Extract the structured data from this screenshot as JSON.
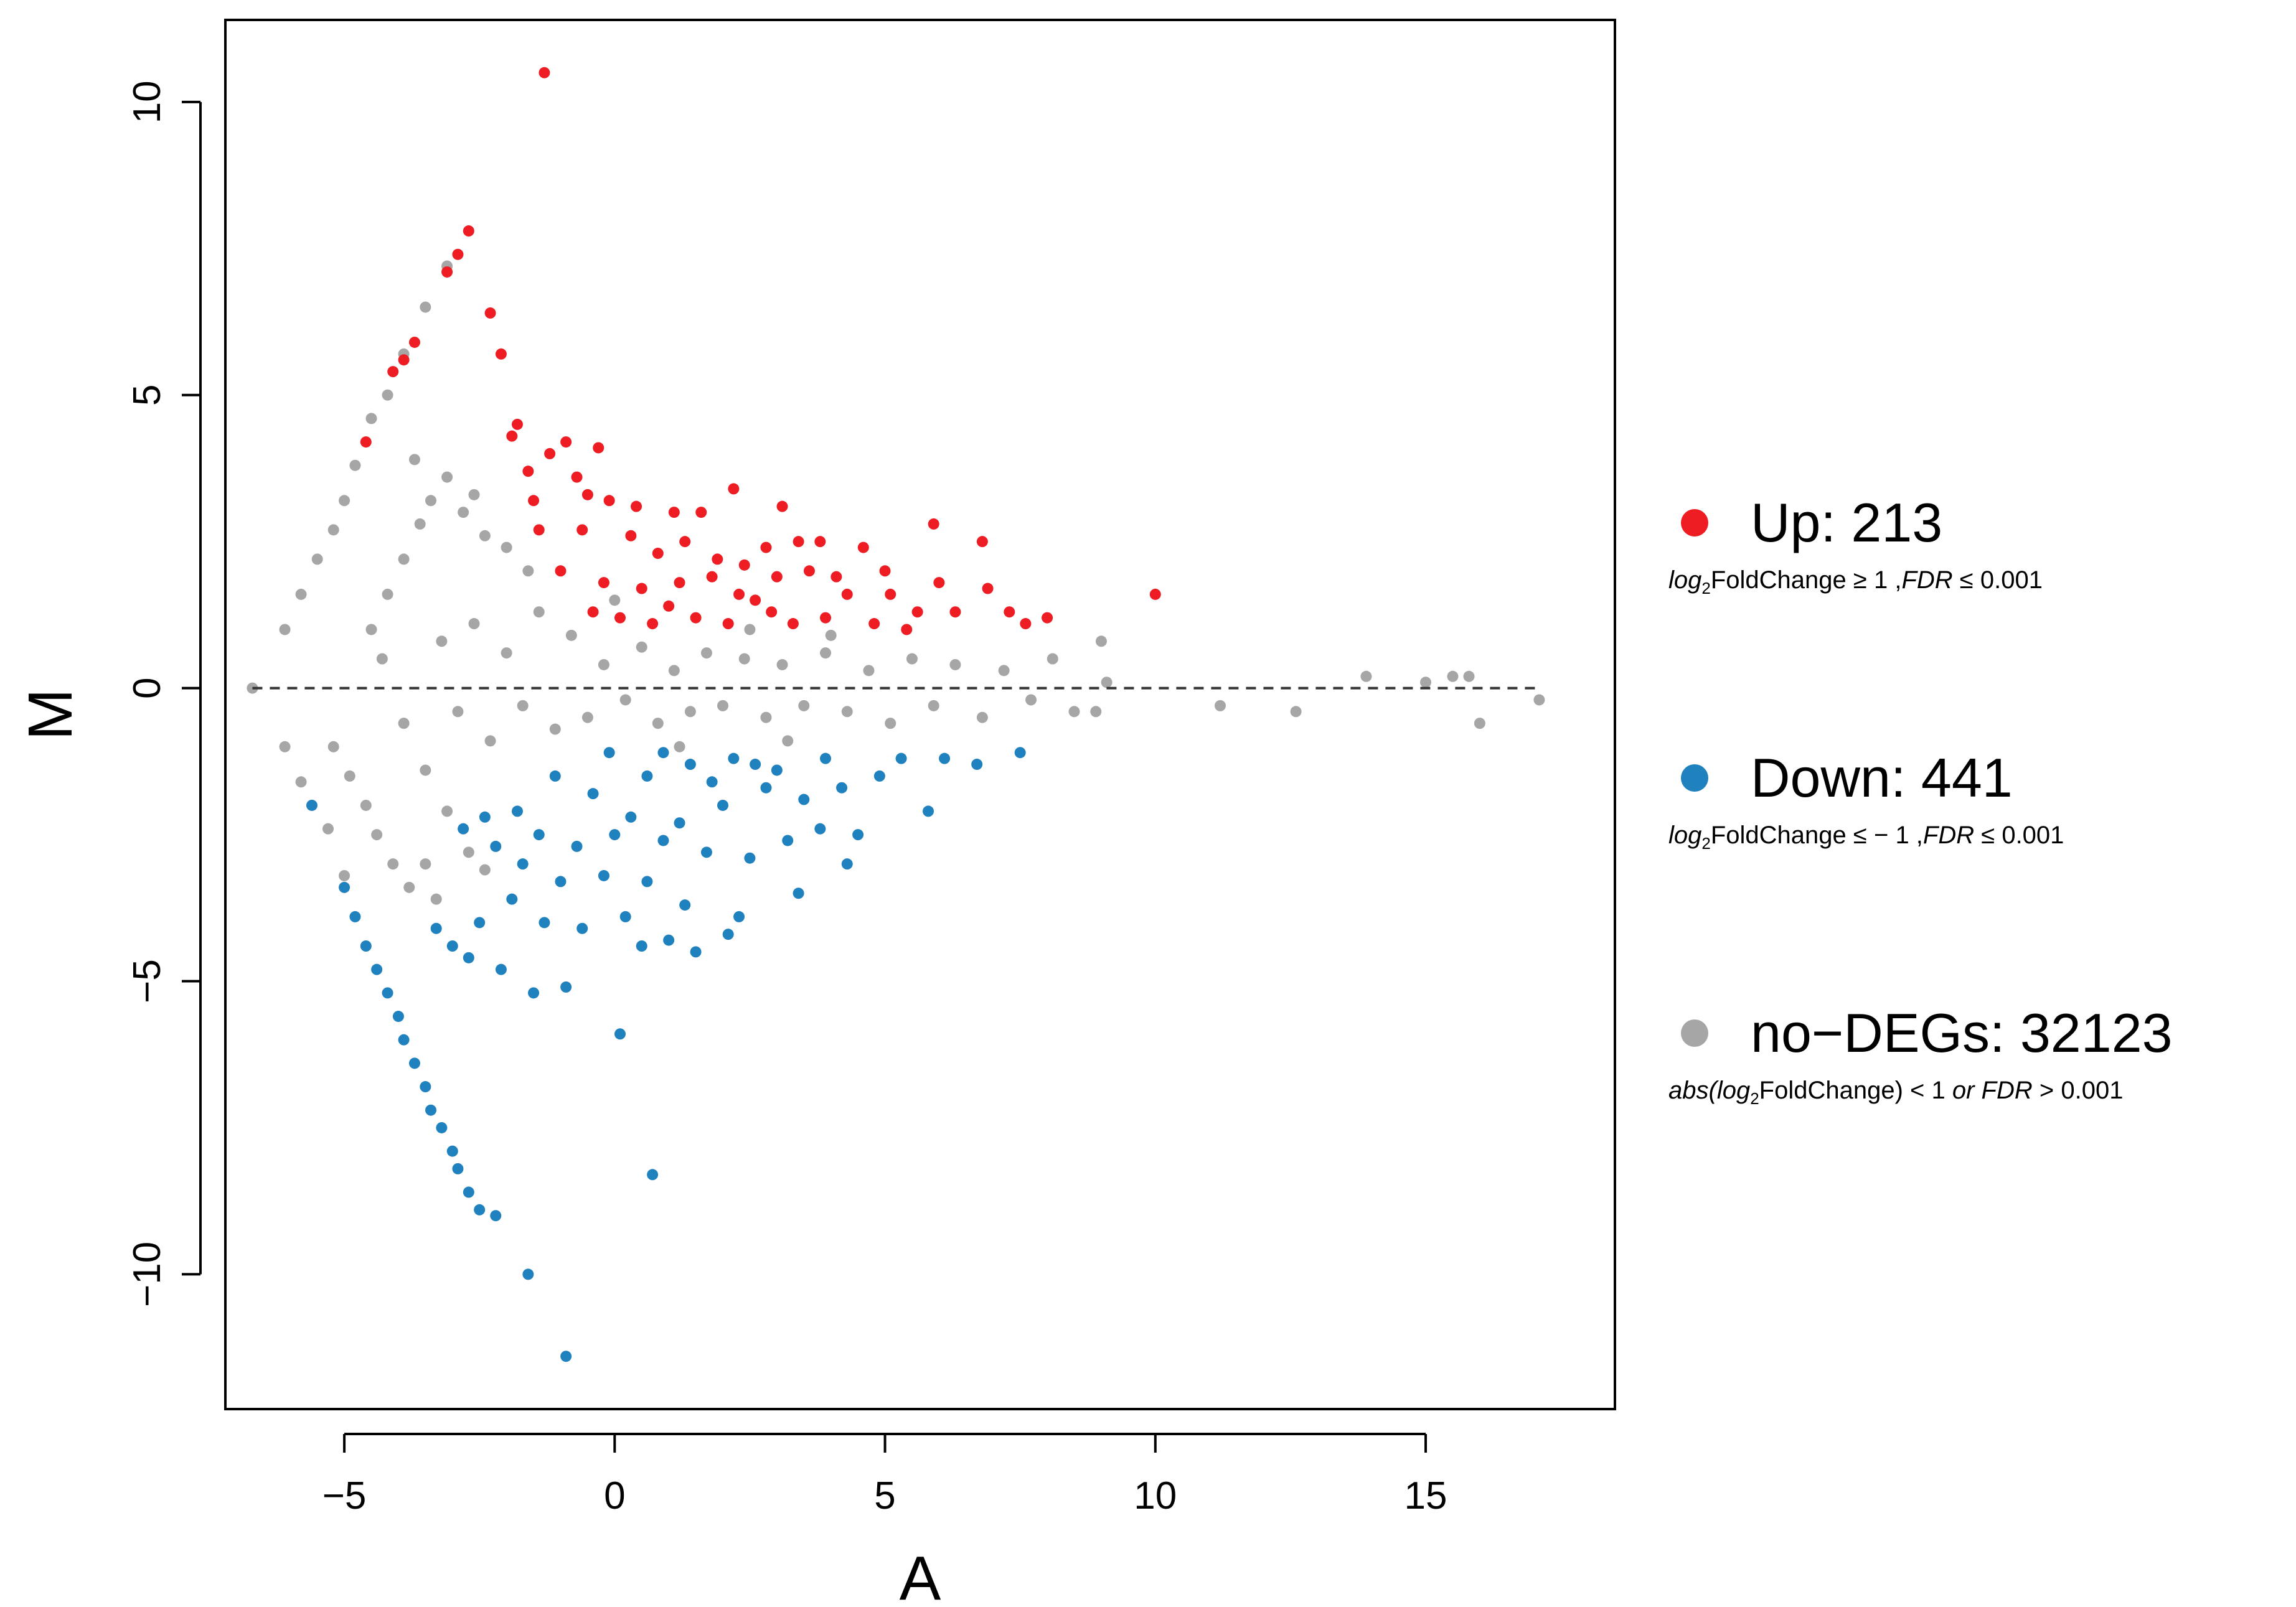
{
  "chart_data": {
    "type": "scatter",
    "title": "",
    "xlabel": "A",
    "ylabel": "M",
    "xlim": [
      -7.2,
      18.5
    ],
    "ylim": [
      -12.3,
      11.4
    ],
    "xticks": [
      -5,
      0,
      5,
      10,
      15
    ],
    "xtick_labels": [
      "−5",
      "0",
      "5",
      "10",
      "15"
    ],
    "yticks": [
      -10,
      -5,
      0,
      5,
      10
    ],
    "ytick_labels": [
      "−10",
      "−5",
      "0",
      "5",
      "10"
    ],
    "reference_line": {
      "y": 0,
      "style": "dashed"
    },
    "series": [
      {
        "name": "no-DEGs",
        "color": "#A6A6A6",
        "count": 32123,
        "points": [
          [
            -6.7,
            0.0
          ],
          [
            -6.1,
            1.0
          ],
          [
            -5.8,
            1.6
          ],
          [
            -5.5,
            2.2
          ],
          [
            -5.2,
            2.7
          ],
          [
            -5.0,
            3.2
          ],
          [
            -4.8,
            3.8
          ],
          [
            -4.5,
            4.6
          ],
          [
            -4.2,
            5.0
          ],
          [
            -3.9,
            5.7
          ],
          [
            -3.5,
            6.5
          ],
          [
            -3.1,
            7.2
          ],
          [
            -6.1,
            -1.0
          ],
          [
            -5.8,
            -1.6
          ],
          [
            -5.3,
            -2.4
          ],
          [
            -5.0,
            -3.2
          ],
          [
            -5.2,
            -1.0
          ],
          [
            -4.9,
            -1.5
          ],
          [
            -4.6,
            -2.0
          ],
          [
            -4.4,
            -2.5
          ],
          [
            -4.1,
            -3.0
          ],
          [
            -3.8,
            -3.4
          ],
          [
            -3.5,
            -3.0
          ],
          [
            -3.3,
            -3.6
          ],
          [
            -3.7,
            3.9
          ],
          [
            -3.4,
            3.2
          ],
          [
            -3.1,
            3.6
          ],
          [
            -2.8,
            3.0
          ],
          [
            -2.6,
            3.3
          ],
          [
            -2.4,
            2.6
          ],
          [
            -2.0,
            2.4
          ],
          [
            -1.6,
            2.0
          ],
          [
            -4.5,
            1.0
          ],
          [
            -4.2,
            1.6
          ],
          [
            -3.9,
            2.2
          ],
          [
            -3.6,
            2.8
          ],
          [
            -4.3,
            0.5
          ],
          [
            -3.9,
            -0.6
          ],
          [
            -3.5,
            -1.4
          ],
          [
            -3.1,
            -2.1
          ],
          [
            -2.7,
            -2.8
          ],
          [
            -2.4,
            -3.1
          ],
          [
            -3.2,
            0.8
          ],
          [
            -2.9,
            -0.4
          ],
          [
            -2.6,
            1.1
          ],
          [
            -2.3,
            -0.9
          ],
          [
            -2.0,
            0.6
          ],
          [
            -1.7,
            -0.3
          ],
          [
            -1.4,
            1.3
          ],
          [
            -1.1,
            -0.7
          ],
          [
            -0.8,
            0.9
          ],
          [
            -0.5,
            -0.5
          ],
          [
            -0.2,
            0.4
          ],
          [
            0.2,
            -0.2
          ],
          [
            0.5,
            0.7
          ],
          [
            0.8,
            -0.6
          ],
          [
            1.1,
            0.3
          ],
          [
            1.4,
            -0.4
          ],
          [
            1.7,
            0.6
          ],
          [
            2.0,
            -0.3
          ],
          [
            2.4,
            0.5
          ],
          [
            2.8,
            -0.5
          ],
          [
            3.1,
            0.4
          ],
          [
            3.5,
            -0.3
          ],
          [
            3.9,
            0.6
          ],
          [
            4.3,
            -0.4
          ],
          [
            4.7,
            0.3
          ],
          [
            5.1,
            -0.6
          ],
          [
            5.5,
            0.5
          ],
          [
            5.9,
            -0.3
          ],
          [
            6.3,
            0.4
          ],
          [
            6.8,
            -0.5
          ],
          [
            7.2,
            0.3
          ],
          [
            7.7,
            -0.2
          ],
          [
            8.1,
            0.5
          ],
          [
            8.5,
            -0.4
          ],
          [
            9.0,
            0.8
          ],
          [
            9.1,
            0.1
          ],
          [
            8.9,
            -0.4
          ],
          [
            11.2,
            -0.3
          ],
          [
            12.6,
            -0.4
          ],
          [
            13.9,
            0.2
          ],
          [
            15.0,
            0.1
          ],
          [
            15.5,
            0.2
          ],
          [
            15.8,
            0.2
          ],
          [
            16.0,
            -0.6
          ],
          [
            17.1,
            -0.2
          ],
          [
            4.0,
            0.9
          ],
          [
            3.2,
            -0.9
          ],
          [
            2.5,
            1.0
          ],
          [
            1.2,
            -1.0
          ],
          [
            0.0,
            1.5
          ]
        ]
      },
      {
        "name": "Up",
        "color": "#EE1C23",
        "count": 213,
        "points": [
          [
            -1.3,
            10.5
          ],
          [
            -2.7,
            7.8
          ],
          [
            -2.9,
            7.4
          ],
          [
            -3.1,
            7.1
          ],
          [
            -3.7,
            5.9
          ],
          [
            -3.9,
            5.6
          ],
          [
            -4.1,
            5.4
          ],
          [
            -4.6,
            4.2
          ],
          [
            -2.3,
            6.4
          ],
          [
            -2.1,
            5.7
          ],
          [
            -1.8,
            4.5
          ],
          [
            -1.9,
            4.3
          ],
          [
            -0.9,
            4.2
          ],
          [
            -0.3,
            4.1
          ],
          [
            -1.2,
            4.0
          ],
          [
            -1.6,
            3.7
          ],
          [
            -0.7,
            3.6
          ],
          [
            -0.5,
            3.3
          ],
          [
            -1.5,
            3.2
          ],
          [
            -0.1,
            3.2
          ],
          [
            0.4,
            3.1
          ],
          [
            1.1,
            3.0
          ],
          [
            1.6,
            3.0
          ],
          [
            2.2,
            3.4
          ],
          [
            3.1,
            3.1
          ],
          [
            3.4,
            2.5
          ],
          [
            3.8,
            2.5
          ],
          [
            4.6,
            2.4
          ],
          [
            5.9,
            2.8
          ],
          [
            6.8,
            2.5
          ],
          [
            -1.4,
            2.7
          ],
          [
            -0.6,
            2.7
          ],
          [
            0.3,
            2.6
          ],
          [
            0.8,
            2.3
          ],
          [
            1.3,
            2.5
          ],
          [
            1.9,
            2.2
          ],
          [
            2.4,
            2.1
          ],
          [
            2.8,
            2.4
          ],
          [
            3.0,
            1.9
          ],
          [
            3.6,
            2.0
          ],
          [
            4.3,
            1.6
          ],
          [
            5.1,
            1.6
          ],
          [
            5.6,
            1.3
          ],
          [
            6.3,
            1.3
          ],
          [
            6.9,
            1.7
          ],
          [
            7.3,
            1.3
          ],
          [
            8.0,
            1.2
          ],
          [
            10.0,
            1.6
          ],
          [
            -1.0,
            2.0
          ],
          [
            -0.2,
            1.8
          ],
          [
            0.5,
            1.7
          ],
          [
            1.0,
            1.4
          ],
          [
            1.5,
            1.2
          ],
          [
            2.1,
            1.1
          ],
          [
            2.6,
            1.5
          ],
          [
            3.3,
            1.1
          ],
          [
            3.9,
            1.2
          ],
          [
            4.8,
            1.1
          ],
          [
            5.4,
            1.0
          ],
          [
            0.1,
            1.2
          ],
          [
            0.7,
            1.1
          ],
          [
            1.8,
            1.9
          ],
          [
            2.3,
            1.6
          ],
          [
            -0.4,
            1.3
          ],
          [
            1.2,
            1.8
          ],
          [
            2.9,
            1.3
          ],
          [
            4.1,
            1.9
          ],
          [
            5.0,
            2.0
          ],
          [
            6.0,
            1.8
          ],
          [
            7.6,
            1.1
          ]
        ]
      },
      {
        "name": "Down",
        "color": "#1F81BE",
        "count": 441,
        "points": [
          [
            -5.6,
            -2.0
          ],
          [
            -5.0,
            -3.4
          ],
          [
            -4.8,
            -3.9
          ],
          [
            -4.6,
            -4.4
          ],
          [
            -4.4,
            -4.8
          ],
          [
            -4.2,
            -5.2
          ],
          [
            -4.0,
            -5.6
          ],
          [
            -3.9,
            -6.0
          ],
          [
            -3.7,
            -6.4
          ],
          [
            -3.5,
            -6.8
          ],
          [
            -3.4,
            -7.2
          ],
          [
            -3.2,
            -7.5
          ],
          [
            -3.0,
            -7.9
          ],
          [
            -2.9,
            -8.2
          ],
          [
            -2.7,
            -8.6
          ],
          [
            -2.5,
            -8.9
          ],
          [
            -2.2,
            -9.0
          ],
          [
            -1.6,
            -10.0
          ],
          [
            -0.9,
            -11.4
          ],
          [
            0.7,
            -8.3
          ],
          [
            0.1,
            -5.9
          ],
          [
            -0.9,
            -5.1
          ],
          [
            -1.5,
            -5.2
          ],
          [
            -2.1,
            -4.8
          ],
          [
            -2.7,
            -4.6
          ],
          [
            -3.0,
            -4.4
          ],
          [
            -3.3,
            -4.1
          ],
          [
            -2.5,
            -4.0
          ],
          [
            -1.9,
            -3.6
          ],
          [
            -1.3,
            -4.0
          ],
          [
            -0.6,
            -4.1
          ],
          [
            0.2,
            -3.9
          ],
          [
            0.5,
            -4.4
          ],
          [
            1.0,
            -4.3
          ],
          [
            1.5,
            -4.5
          ],
          [
            2.1,
            -4.2
          ],
          [
            2.3,
            -3.9
          ],
          [
            3.4,
            -3.5
          ],
          [
            1.3,
            -3.7
          ],
          [
            0.6,
            -3.3
          ],
          [
            -0.2,
            -3.2
          ],
          [
            -1.0,
            -3.3
          ],
          [
            -1.7,
            -3.0
          ],
          [
            -2.2,
            -2.7
          ],
          [
            -2.8,
            -2.4
          ],
          [
            -1.4,
            -2.5
          ],
          [
            -0.7,
            -2.7
          ],
          [
            0.0,
            -2.5
          ],
          [
            0.9,
            -2.6
          ],
          [
            1.7,
            -2.8
          ],
          [
            2.5,
            -2.9
          ],
          [
            3.2,
            -2.6
          ],
          [
            3.8,
            -2.4
          ],
          [
            4.3,
            -3.0
          ],
          [
            4.5,
            -2.5
          ],
          [
            5.8,
            -2.1
          ],
          [
            0.3,
            -2.2
          ],
          [
            1.2,
            -2.3
          ],
          [
            2.0,
            -2.0
          ],
          [
            2.8,
            -1.7
          ],
          [
            3.5,
            -1.9
          ],
          [
            4.2,
            -1.7
          ],
          [
            4.9,
            -1.5
          ],
          [
            5.3,
            -1.2
          ],
          [
            6.1,
            -1.2
          ],
          [
            6.7,
            -1.3
          ],
          [
            7.5,
            -1.1
          ],
          [
            -0.4,
            -1.8
          ],
          [
            0.6,
            -1.5
          ],
          [
            1.4,
            -1.3
          ],
          [
            2.2,
            -1.2
          ],
          [
            3.0,
            -1.4
          ],
          [
            -1.1,
            -1.5
          ],
          [
            -0.1,
            -1.1
          ],
          [
            0.9,
            -1.1
          ],
          [
            1.8,
            -1.6
          ],
          [
            2.6,
            -1.3
          ],
          [
            3.9,
            -1.2
          ],
          [
            -1.8,
            -2.1
          ],
          [
            -2.4,
            -2.2
          ]
        ]
      }
    ]
  },
  "legend": {
    "up": {
      "label": "Up: 213",
      "color": "#EE1C23",
      "condition": {
        "part1": "log",
        "sub": "2",
        "part2": "FoldChange ≥ 1 ,",
        "part3": "FDR",
        "part4": " ≤ 0.001"
      }
    },
    "down": {
      "label": "Down: 441",
      "color": "#1F81BE",
      "condition": {
        "part1": "log",
        "sub": "2",
        "part2": "FoldChange ≤ − 1 ,",
        "part3": "FDR",
        "part4": " ≤ 0.001"
      }
    },
    "no": {
      "label": "no−DEGs: 32123",
      "color": "#A6A6A6",
      "condition": {
        "part1": "abs(log",
        "sub": "2",
        "part2": "FoldChange) < 1 ",
        "part3": " or FDR",
        "part4": " > 0.001"
      }
    }
  }
}
